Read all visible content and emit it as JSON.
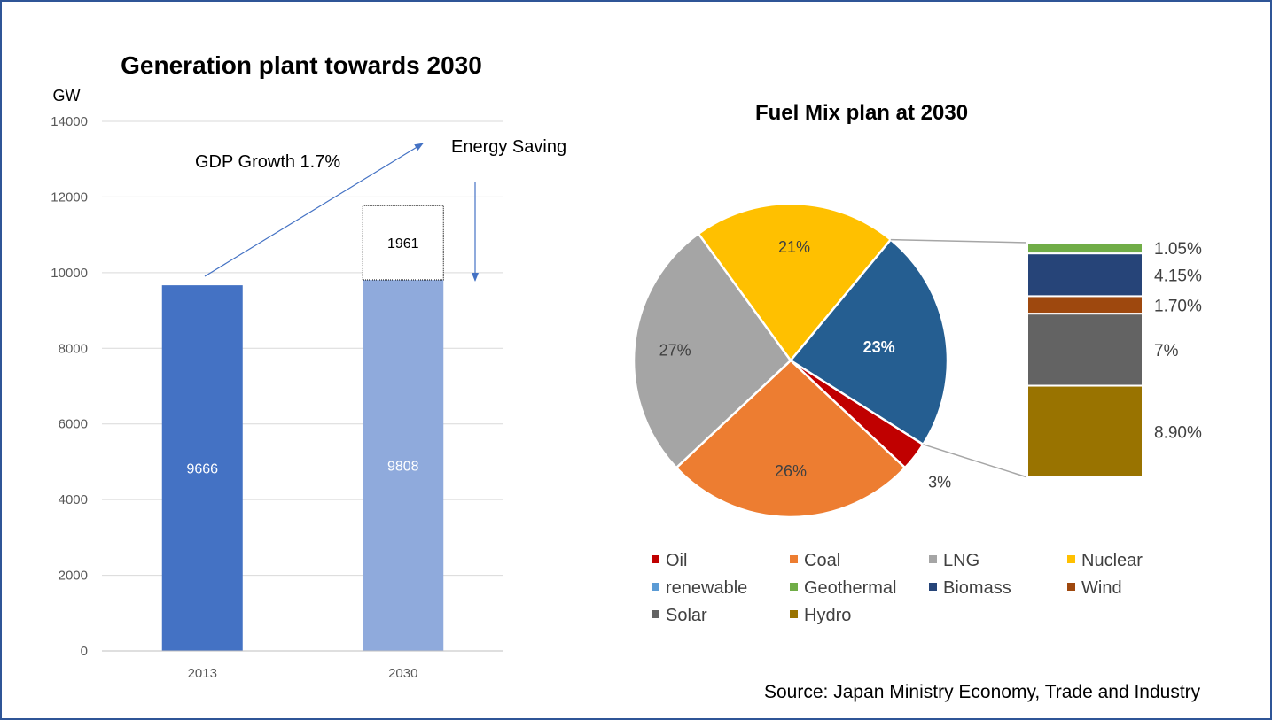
{
  "chart_data": [
    {
      "type": "bar",
      "title": "Generation plant towards 2030",
      "ylabel": "GW",
      "ylim": [
        0,
        14000
      ],
      "yticks": [
        0,
        2000,
        4000,
        6000,
        8000,
        10000,
        12000,
        14000
      ],
      "grid": true,
      "categories": [
        "2013",
        "2030"
      ],
      "values": [
        9666,
        9808
      ],
      "stacked_extra": {
        "category": "2030",
        "value": 1961
      },
      "colors": [
        "#4472C4",
        "#8FAADC"
      ],
      "annotations": [
        {
          "text": "GDP Growth 1.7%"
        },
        {
          "text": "Energy Saving"
        }
      ]
    },
    {
      "type": "pie",
      "title": "Fuel Mix plan at 2030",
      "slices": [
        {
          "name": "Oil",
          "value": 3,
          "label": "3%",
          "color": "#C00000"
        },
        {
          "name": "Coal",
          "value": 26,
          "label": "26%",
          "color": "#ED7D31"
        },
        {
          "name": "LNG",
          "value": 27,
          "label": "27%",
          "color": "#A5A5A5"
        },
        {
          "name": "Nuclear",
          "value": 21,
          "label": "21%",
          "color": "#FFC000"
        },
        {
          "name": "renewable",
          "value": 23,
          "label": "23%",
          "color": "#255E91"
        }
      ],
      "breakdown": [
        {
          "name": "Geothermal",
          "value": 1.05,
          "label": "1.05%",
          "color": "#70AD47"
        },
        {
          "name": "Biomass",
          "value": 4.15,
          "label": "4.15%",
          "color": "#264478"
        },
        {
          "name": "Wind",
          "value": 1.7,
          "label": "1.70%",
          "color": "#9E480E"
        },
        {
          "name": "Solar",
          "value": 7,
          "label": "7%",
          "color": "#636363"
        },
        {
          "name": "Hydro",
          "value": 8.9,
          "label": "8.90%",
          "color": "#997300"
        }
      ],
      "legend": [
        {
          "name": "Oil",
          "color": "#C00000"
        },
        {
          "name": "Coal",
          "color": "#ED7D31"
        },
        {
          "name": "LNG",
          "color": "#A5A5A5"
        },
        {
          "name": "Nuclear",
          "color": "#FFC000"
        },
        {
          "name": "renewable",
          "color": "#5B9BD5"
        },
        {
          "name": "Geothermal",
          "color": "#70AD47"
        },
        {
          "name": "Biomass",
          "color": "#264478"
        },
        {
          "name": "Wind",
          "color": "#9E480E"
        },
        {
          "name": "Solar",
          "color": "#636363"
        },
        {
          "name": "Hydro",
          "color": "#997300"
        }
      ],
      "legend_position": "bottom"
    }
  ],
  "source": "Source: Japan Ministry Economy, Trade and Industry"
}
